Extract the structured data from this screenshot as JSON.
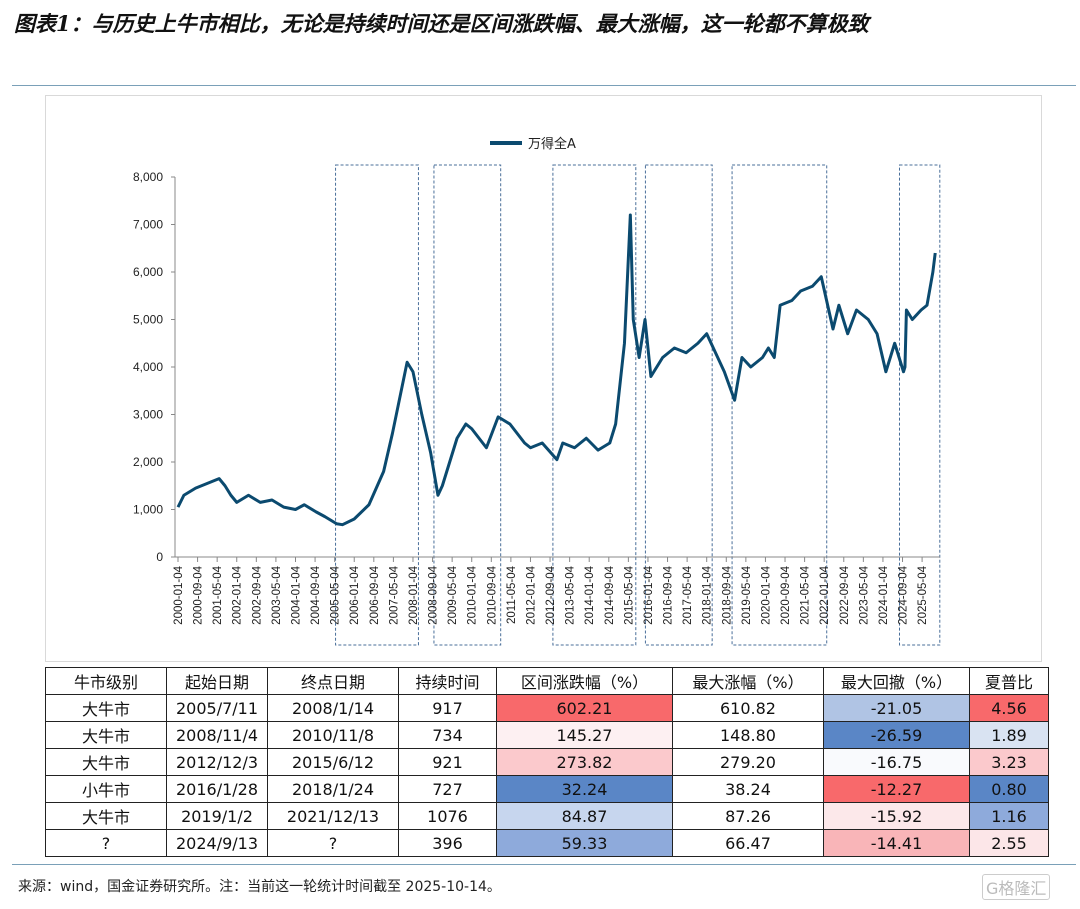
{
  "title": "图表1：与历史上牛市相比，无论是持续时间还是区间涨跌幅、最大涨幅，这一轮都不算极致",
  "footer": "来源：wind，国金证券研究所。注：当前这一轮统计时间截至 2025-10-14。",
  "watermark": "格隆汇",
  "chart_data": {
    "type": "line",
    "title": "",
    "legend": [
      "万得全A"
    ],
    "legend_position": "top-center",
    "series_color": "#0b4a6f",
    "ylim": [
      0,
      8000
    ],
    "yticks": [
      0,
      1000,
      2000,
      3000,
      4000,
      5000,
      6000,
      7000,
      8000
    ],
    "ytick_labels": [
      "0",
      "1,000",
      "2,000",
      "3,000",
      "4,000",
      "5,000",
      "6,000",
      "7,000",
      "8,000"
    ],
    "xticks": [
      "2000-01-04",
      "2000-09-04",
      "2001-05-04",
      "2002-01-04",
      "2002-09-04",
      "2003-05-04",
      "2004-01-04",
      "2004-09-04",
      "2005-05-04",
      "2006-01-04",
      "2006-09-04",
      "2007-05-04",
      "2008-01-04",
      "2008-09-04",
      "2009-05-04",
      "2010-01-04",
      "2010-09-04",
      "2011-05-04",
      "2012-01-04",
      "2012-09-04",
      "2013-05-04",
      "2014-01-04",
      "2014-09-04",
      "2015-05-04",
      "2016-01-04",
      "2016-09-04",
      "2017-05-04",
      "2018-01-04",
      "2018-09-04",
      "2019-05-04",
      "2020-01-04",
      "2020-09-04",
      "2021-05-04",
      "2022-01-04",
      "2022-09-04",
      "2023-05-04",
      "2024-01-04",
      "2024-09-04",
      "2025-05-04"
    ],
    "series": [
      {
        "name": "万得全A",
        "x": [
          2000.0,
          2000.2,
          2000.6,
          2001.0,
          2001.4,
          2001.6,
          2001.8,
          2002.0,
          2002.4,
          2002.8,
          2003.2,
          2003.6,
          2004.0,
          2004.3,
          2004.7,
          2005.0,
          2005.4,
          2005.6,
          2006.0,
          2006.5,
          2007.0,
          2007.3,
          2007.5,
          2007.8,
          2008.0,
          2008.3,
          2008.6,
          2008.85,
          2009.0,
          2009.5,
          2009.8,
          2010.0,
          2010.5,
          2010.9,
          2011.3,
          2011.8,
          2012.0,
          2012.4,
          2012.9,
          2013.1,
          2013.5,
          2013.9,
          2014.3,
          2014.7,
          2014.9,
          2015.2,
          2015.4,
          2015.5,
          2015.7,
          2015.9,
          2016.1,
          2016.5,
          2016.9,
          2017.3,
          2017.7,
          2018.0,
          2018.3,
          2018.6,
          2018.95,
          2019.2,
          2019.5,
          2019.9,
          2020.1,
          2020.3,
          2020.5,
          2020.9,
          2021.2,
          2021.6,
          2021.9,
          2022.3,
          2022.5,
          2022.8,
          2023.1,
          2023.5,
          2023.8,
          2024.1,
          2024.4,
          2024.7,
          2024.75,
          2024.8,
          2025.0,
          2025.3,
          2025.5,
          2025.7,
          2025.78
        ],
        "y": [
          1050,
          1300,
          1450,
          1550,
          1650,
          1500,
          1300,
          1150,
          1300,
          1150,
          1200,
          1050,
          1000,
          1100,
          950,
          850,
          700,
          680,
          800,
          1100,
          1800,
          2600,
          3200,
          4100,
          3900,
          3000,
          2200,
          1300,
          1500,
          2500,
          2800,
          2700,
          2300,
          2950,
          2800,
          2400,
          2300,
          2400,
          2050,
          2400,
          2300,
          2500,
          2250,
          2400,
          2800,
          4500,
          7200,
          5000,
          4200,
          5000,
          3800,
          4200,
          4400,
          4300,
          4500,
          4700,
          4300,
          3900,
          3300,
          4200,
          4000,
          4200,
          4400,
          4200,
          5300,
          5400,
          5600,
          5700,
          5900,
          4800,
          5300,
          4700,
          5200,
          5000,
          4700,
          3900,
          4500,
          3900,
          4000,
          5200,
          5000,
          5200,
          5300,
          6000,
          6400
        ]
      }
    ],
    "highlight_periods": [
      [
        2005.5,
        2008.05
      ],
      [
        2008.85,
        2010.85
      ],
      [
        2012.9,
        2015.45
      ],
      [
        2016.05,
        2018.05
      ],
      [
        2019.0,
        2021.95
      ],
      [
        2024.7,
        2025.8
      ]
    ]
  },
  "table": {
    "headers": [
      "牛市级别",
      "起始日期",
      "终点日期",
      "持续时间",
      "区间涨跌幅（%）",
      "最大涨幅（%）",
      "最大回撤（%）",
      "夏普比"
    ],
    "rows": [
      [
        "大牛市",
        "2005/7/11",
        "2008/1/14",
        "917",
        "602.21",
        "610.82",
        "-21.05",
        "4.56"
      ],
      [
        "大牛市",
        "2008/11/4",
        "2010/11/8",
        "734",
        "145.27",
        "148.80",
        "-26.59",
        "1.89"
      ],
      [
        "大牛市",
        "2012/12/3",
        "2015/6/12",
        "921",
        "273.82",
        "279.20",
        "-16.75",
        "3.23"
      ],
      [
        "小牛市",
        "2016/1/28",
        "2018/1/24",
        "727",
        "32.24",
        "38.24",
        "-12.27",
        "0.80"
      ],
      [
        "大牛市",
        "2019/1/2",
        "2021/12/13",
        "1076",
        "84.87",
        "87.26",
        "-15.92",
        "1.16"
      ],
      [
        "?",
        "2024/9/13",
        "?",
        "396",
        "59.33",
        "66.47",
        "-14.41",
        "2.55"
      ]
    ],
    "cell_colors": [
      [
        "",
        "",
        "",
        "",
        "#f8696b",
        "",
        "#b0c4e4",
        "#f8696b"
      ],
      [
        "",
        "",
        "",
        "",
        "#fdf0f2",
        "",
        "#5a86c6",
        "#d9e3f2"
      ],
      [
        "",
        "",
        "",
        "",
        "#fbc9cc",
        "",
        "#f9fafd",
        "#fbc9cc"
      ],
      [
        "",
        "",
        "",
        "",
        "#5a86c6",
        "",
        "#f8696b",
        "#5a86c6"
      ],
      [
        "",
        "",
        "",
        "",
        "#c7d6ee",
        "",
        "#fce8ea",
        "#8eaadb"
      ],
      [
        "",
        "",
        "",
        "",
        "#8eaadb",
        "",
        "#f9b5b8",
        "#fce6e8"
      ]
    ]
  }
}
